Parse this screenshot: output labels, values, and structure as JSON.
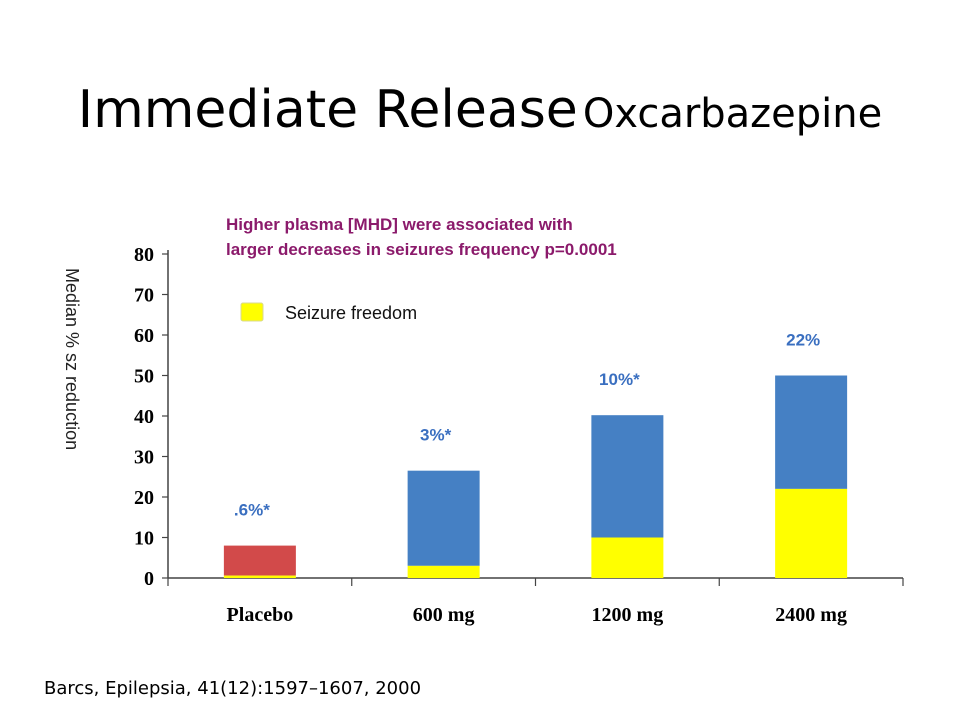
{
  "slide": {
    "title_main": "Immediate Release",
    "title_drug": "Oxcarbazepine",
    "citation": "Barcs, Epilepsia, 41(12):1597–1607, 2000"
  },
  "colors": {
    "placebo": "#d24a4a",
    "treatment": "#4580c4",
    "seizure_freedom": "#ffff00",
    "annotation_text": "#8b1a6b",
    "percent_label": "#3a6fc0"
  },
  "chart_data": {
    "type": "bar",
    "stacked": true,
    "annotation": [
      "Higher plasma [MHD] were associated with",
      "larger decreases in seizures frequency p=0.0001"
    ],
    "ylabel": "Median % sz reduction",
    "ylim": [
      0,
      80
    ],
    "yticks": [
      0,
      10,
      20,
      30,
      40,
      50,
      60,
      70,
      80
    ],
    "categories": [
      "Placebo",
      "600 mg",
      "1200 mg",
      "2400 mg"
    ],
    "legend": [
      {
        "name": "Seizure freedom",
        "color": "#ffff00"
      }
    ],
    "series": [
      {
        "name": "Seizure freedom",
        "values": [
          0.6,
          3,
          10,
          22
        ]
      },
      {
        "name": "",
        "values": [
          7.4,
          23.5,
          30.2,
          28
        ]
      }
    ],
    "bar_colors": [
      "#d24a4a",
      "#4580c4",
      "#4580c4",
      "#4580c4"
    ],
    "bar_labels": [
      ".6%*",
      "3%*",
      "10%*",
      "22%"
    ]
  }
}
